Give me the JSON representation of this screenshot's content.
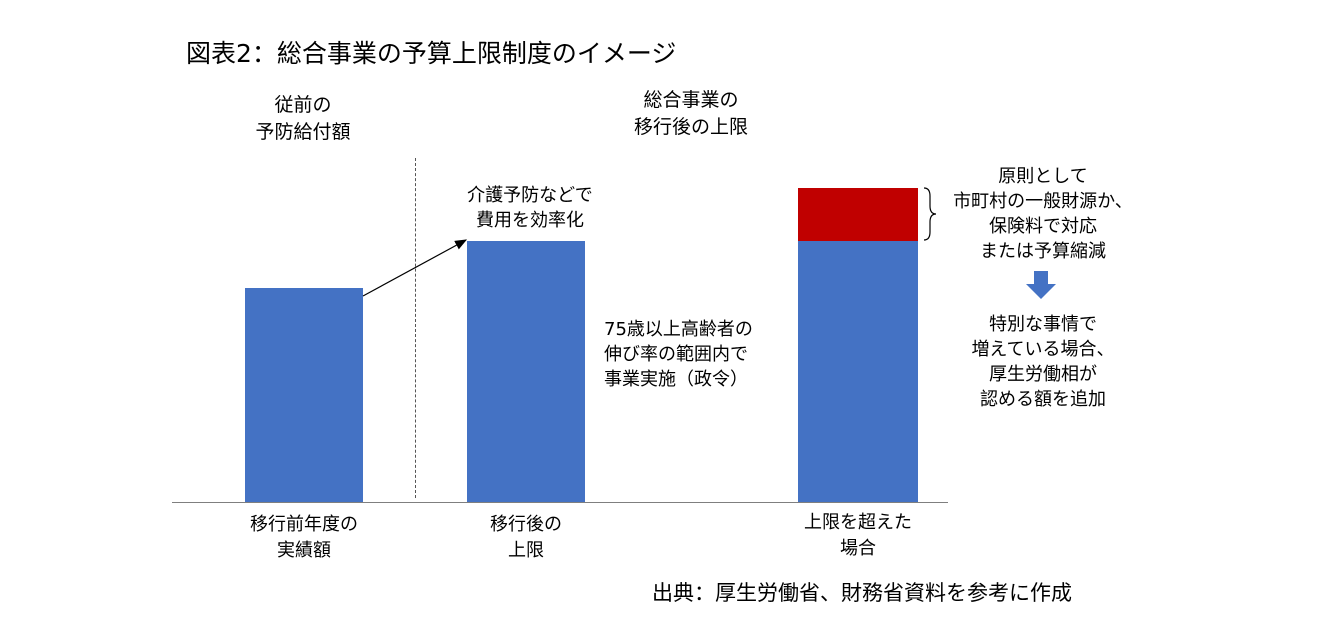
{
  "title": "図表2：総合事業の予算上限制度のイメージ",
  "headers": {
    "left": [
      "従前の",
      "予防給付額"
    ],
    "right": [
      "総合事業の",
      "移行後の上限"
    ]
  },
  "bars": [
    {
      "label": [
        "移行前年度の",
        "実績額"
      ],
      "value": 0.69
    },
    {
      "label": [
        "移行後の",
        "上限"
      ],
      "value": 0.84
    },
    {
      "label": [
        "上限を超えた",
        "場合"
      ],
      "value": 0.84,
      "excess": 0.17
    }
  ],
  "annotations": {
    "efficiency": [
      "介護予防などで",
      "費用を効率化"
    ],
    "cabinet_order": [
      "75歳以上高齢者の",
      "伸び率の範囲内で",
      "事業実施（政令）"
    ],
    "principle": [
      "原則として",
      "市町村の一般財源か、",
      "保険料で対応",
      "または予算縮減"
    ],
    "special": [
      "特別な事情で",
      "増えている場合、",
      "厚生労働相が",
      "認める額を追加"
    ]
  },
  "source": "出典：厚生労働省、財務省資料を参考に作成",
  "colors": {
    "bar": "#4472c4",
    "excess": "#c00000"
  }
}
